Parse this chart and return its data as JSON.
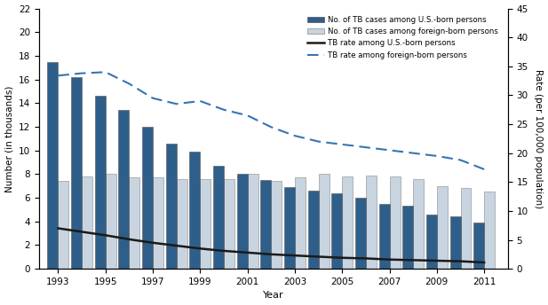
{
  "years": [
    1993,
    1994,
    1995,
    1996,
    1997,
    1998,
    1999,
    2000,
    2001,
    2002,
    2003,
    2004,
    2005,
    2006,
    2007,
    2008,
    2009,
    2010,
    2011
  ],
  "us_born_cases": [
    17.5,
    16.2,
    14.6,
    13.4,
    12.0,
    10.6,
    9.9,
    8.7,
    8.0,
    7.5,
    6.9,
    6.6,
    6.4,
    6.0,
    5.5,
    5.3,
    4.6,
    4.4,
    3.93
  ],
  "foreign_born_cases": [
    7.4,
    7.8,
    8.0,
    7.7,
    7.7,
    7.6,
    7.6,
    7.6,
    8.0,
    7.4,
    7.7,
    8.0,
    7.8,
    7.9,
    7.8,
    7.6,
    7.0,
    6.8,
    6.5
  ],
  "us_born_rate": [
    7.0,
    6.4,
    5.8,
    5.1,
    4.5,
    4.0,
    3.5,
    3.1,
    2.8,
    2.5,
    2.3,
    2.1,
    1.9,
    1.8,
    1.6,
    1.5,
    1.4,
    1.3,
    1.1
  ],
  "foreign_born_rate": [
    33.4,
    33.8,
    34.0,
    32.0,
    29.5,
    28.5,
    29.0,
    27.5,
    26.5,
    24.5,
    23.0,
    22.0,
    21.5,
    21.0,
    20.5,
    20.0,
    19.5,
    18.8,
    17.2
  ],
  "us_born_bar_color": "#2E5F8A",
  "foreign_born_bar_color": "#C8D4E0",
  "us_rate_line_color": "#1a1a1a",
  "foreign_rate_line_color": "#3575B5",
  "ylim_left": [
    0,
    22
  ],
  "ylim_right": [
    0,
    45
  ],
  "yticks_left": [
    0,
    2,
    4,
    6,
    8,
    10,
    12,
    14,
    16,
    18,
    20,
    22
  ],
  "yticks_right": [
    0,
    5,
    10,
    15,
    20,
    25,
    30,
    35,
    40,
    45
  ],
  "xlabel": "Year",
  "ylabel_left": "Number (in thousands)",
  "ylabel_right": "Rate (per 100,000 population)",
  "xtick_labels": [
    "1993",
    "1995",
    "1997",
    "1999",
    "2001",
    "2003",
    "2005",
    "2007",
    "2009",
    "2011"
  ],
  "xtick_positions": [
    1993,
    1995,
    1997,
    1999,
    2001,
    2003,
    2005,
    2007,
    2009,
    2011
  ],
  "legend_labels": [
    "No. of TB cases among U.S.-born persons",
    "No. of TB cases among foreign-born persons",
    "TB rate among U.S.-born persons",
    "TB rate among foreign-born persons"
  ],
  "bar_width": 0.45,
  "figsize": [
    6.17,
    3.44
  ],
  "dpi": 100
}
